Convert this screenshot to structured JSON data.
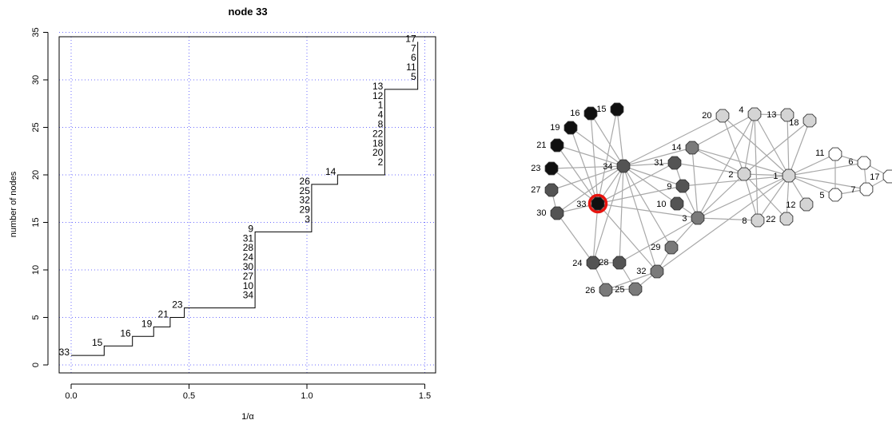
{
  "chart_data": {
    "type": "line",
    "title": "node 33",
    "xlabel": "1/α",
    "ylabel": "number of nodes",
    "xlim": [
      -0.05,
      1.55
    ],
    "ylim": [
      -0.5,
      35.5
    ],
    "xticks": [
      "0.0",
      "0.5",
      "1.0",
      "1.5"
    ],
    "yticks": [
      "0",
      "5",
      "10",
      "15",
      "20",
      "25",
      "30",
      "35"
    ],
    "grid": true,
    "series": [
      {
        "x": [
          0,
          0.14,
          0.26,
          0.35,
          0.42,
          0.48,
          0.78,
          1.02,
          1.13,
          1.33,
          1.47
        ],
        "values": [
          1,
          2,
          3,
          4,
          5,
          6,
          14,
          19,
          20,
          29,
          34
        ]
      }
    ],
    "steps": [
      {
        "x": 0,
        "labels": [
          "33"
        ]
      },
      {
        "x": 0.14,
        "labels": [
          "15"
        ]
      },
      {
        "x": 0.26,
        "labels": [
          "16"
        ]
      },
      {
        "x": 0.35,
        "labels": [
          "19"
        ]
      },
      {
        "x": 0.42,
        "labels": [
          "21"
        ]
      },
      {
        "x": 0.48,
        "labels": [
          "23"
        ]
      },
      {
        "x": 0.78,
        "labels": [
          "9",
          "31",
          "28",
          "24",
          "30",
          "27",
          "10",
          "34"
        ]
      },
      {
        "x": 1.02,
        "labels": [
          "26",
          "25",
          "32",
          "29",
          "3"
        ]
      },
      {
        "x": 1.13,
        "labels": [
          "14"
        ]
      },
      {
        "x": 1.33,
        "labels": [
          "13",
          "12",
          "1",
          "4",
          "8",
          "22",
          "18",
          "20",
          "2"
        ]
      },
      {
        "x": 1.47,
        "labels": [
          "17",
          "7",
          "6",
          "11",
          "5"
        ]
      }
    ]
  },
  "network": {
    "highlight": "33",
    "highlight_color": "#e8140f",
    "node_colors": {
      "black": "#101010",
      "dark": "#545454",
      "mid": "#7a7a7a",
      "light": "#d4d4d4",
      "white": "#ffffff"
    },
    "edge_color": "#a8a8a8",
    "nodes": [
      {
        "id": "1",
        "shade": "light"
      },
      {
        "id": "2",
        "shade": "light"
      },
      {
        "id": "3",
        "shade": "mid"
      },
      {
        "id": "4",
        "shade": "light"
      },
      {
        "id": "5",
        "shade": "white"
      },
      {
        "id": "6",
        "shade": "white"
      },
      {
        "id": "7",
        "shade": "white"
      },
      {
        "id": "8",
        "shade": "light"
      },
      {
        "id": "9",
        "shade": "dark"
      },
      {
        "id": "10",
        "shade": "dark"
      },
      {
        "id": "11",
        "shade": "white"
      },
      {
        "id": "12",
        "shade": "light"
      },
      {
        "id": "13",
        "shade": "light"
      },
      {
        "id": "14",
        "shade": "mid"
      },
      {
        "id": "15",
        "shade": "black"
      },
      {
        "id": "16",
        "shade": "black"
      },
      {
        "id": "17",
        "shade": "white"
      },
      {
        "id": "18",
        "shade": "light"
      },
      {
        "id": "19",
        "shade": "black"
      },
      {
        "id": "20",
        "shade": "light"
      },
      {
        "id": "21",
        "shade": "black"
      },
      {
        "id": "22",
        "shade": "light"
      },
      {
        "id": "23",
        "shade": "black"
      },
      {
        "id": "24",
        "shade": "dark"
      },
      {
        "id": "25",
        "shade": "mid"
      },
      {
        "id": "26",
        "shade": "mid"
      },
      {
        "id": "27",
        "shade": "dark"
      },
      {
        "id": "28",
        "shade": "dark"
      },
      {
        "id": "29",
        "shade": "mid"
      },
      {
        "id": "30",
        "shade": "dark"
      },
      {
        "id": "31",
        "shade": "dark"
      },
      {
        "id": "32",
        "shade": "mid"
      },
      {
        "id": "33",
        "shade": "black"
      },
      {
        "id": "34",
        "shade": "dark"
      }
    ],
    "edges": [
      [
        "1",
        "2"
      ],
      [
        "1",
        "3"
      ],
      [
        "1",
        "4"
      ],
      [
        "1",
        "5"
      ],
      [
        "1",
        "6"
      ],
      [
        "1",
        "7"
      ],
      [
        "1",
        "8"
      ],
      [
        "1",
        "9"
      ],
      [
        "1",
        "11"
      ],
      [
        "1",
        "12"
      ],
      [
        "1",
        "13"
      ],
      [
        "1",
        "14"
      ],
      [
        "1",
        "18"
      ],
      [
        "1",
        "20"
      ],
      [
        "1",
        "22"
      ],
      [
        "1",
        "32"
      ],
      [
        "2",
        "3"
      ],
      [
        "2",
        "4"
      ],
      [
        "2",
        "8"
      ],
      [
        "2",
        "14"
      ],
      [
        "2",
        "18"
      ],
      [
        "2",
        "20"
      ],
      [
        "2",
        "22"
      ],
      [
        "2",
        "31"
      ],
      [
        "3",
        "4"
      ],
      [
        "3",
        "8"
      ],
      [
        "3",
        "9"
      ],
      [
        "3",
        "10"
      ],
      [
        "3",
        "14"
      ],
      [
        "3",
        "28"
      ],
      [
        "3",
        "29"
      ],
      [
        "3",
        "33"
      ],
      [
        "4",
        "8"
      ],
      [
        "4",
        "13"
      ],
      [
        "4",
        "14"
      ],
      [
        "5",
        "7"
      ],
      [
        "5",
        "11"
      ],
      [
        "6",
        "7"
      ],
      [
        "6",
        "11"
      ],
      [
        "6",
        "17"
      ],
      [
        "7",
        "17"
      ],
      [
        "9",
        "31"
      ],
      [
        "9",
        "33"
      ],
      [
        "9",
        "34"
      ],
      [
        "10",
        "34"
      ],
      [
        "14",
        "34"
      ],
      [
        "15",
        "33"
      ],
      [
        "15",
        "34"
      ],
      [
        "16",
        "33"
      ],
      [
        "16",
        "34"
      ],
      [
        "19",
        "33"
      ],
      [
        "19",
        "34"
      ],
      [
        "20",
        "34"
      ],
      [
        "21",
        "33"
      ],
      [
        "21",
        "34"
      ],
      [
        "23",
        "33"
      ],
      [
        "23",
        "34"
      ],
      [
        "24",
        "26"
      ],
      [
        "24",
        "28"
      ],
      [
        "24",
        "30"
      ],
      [
        "24",
        "33"
      ],
      [
        "24",
        "34"
      ],
      [
        "25",
        "26"
      ],
      [
        "25",
        "28"
      ],
      [
        "25",
        "32"
      ],
      [
        "26",
        "32"
      ],
      [
        "27",
        "30"
      ],
      [
        "27",
        "34"
      ],
      [
        "28",
        "34"
      ],
      [
        "29",
        "32"
      ],
      [
        "29",
        "34"
      ],
      [
        "30",
        "33"
      ],
      [
        "30",
        "34"
      ],
      [
        "31",
        "33"
      ],
      [
        "31",
        "34"
      ],
      [
        "32",
        "33"
      ],
      [
        "32",
        "34"
      ],
      [
        "33",
        "34"
      ]
    ]
  }
}
